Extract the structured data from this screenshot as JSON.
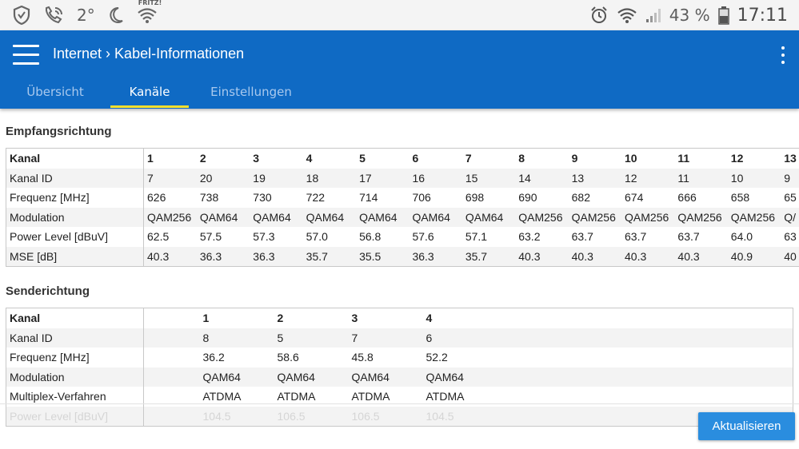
{
  "status_bar": {
    "temperature": "2°",
    "fritz_label": "FRITZ!",
    "battery": "43 %",
    "time": "17:11",
    "icons": [
      "shield-icon",
      "phone-wifi-icon",
      "moon-icon",
      "fritz-wifi-icon",
      "alarm-icon",
      "wifi-icon",
      "signal-icon",
      "battery-icon"
    ]
  },
  "header": {
    "breadcrumb_parent": "Internet",
    "breadcrumb_sep": "›",
    "breadcrumb_current": "Kabel-Informationen",
    "color": "#0f6ac4",
    "accent": "#fde02b"
  },
  "tabs": [
    {
      "label": "Übersicht",
      "active": false
    },
    {
      "label": "Kanäle",
      "active": true
    },
    {
      "label": "Einstellungen",
      "active": false
    }
  ],
  "downstream": {
    "title": "Empfangsrichtung",
    "rows": [
      {
        "label": "Kanal",
        "values": [
          "1",
          "2",
          "3",
          "4",
          "5",
          "6",
          "7",
          "8",
          "9",
          "10",
          "11",
          "12",
          "13"
        ]
      },
      {
        "label": "Kanal ID",
        "values": [
          "7",
          "20",
          "19",
          "18",
          "17",
          "16",
          "15",
          "14",
          "13",
          "12",
          "11",
          "10",
          "9"
        ]
      },
      {
        "label": "Frequenz [MHz]",
        "values": [
          "626",
          "738",
          "730",
          "722",
          "714",
          "706",
          "698",
          "690",
          "682",
          "674",
          "666",
          "658",
          "65"
        ]
      },
      {
        "label": "Modulation",
        "values": [
          "QAM256",
          "QAM64",
          "QAM64",
          "QAM64",
          "QAM64",
          "QAM64",
          "QAM64",
          "QAM256",
          "QAM256",
          "QAM256",
          "QAM256",
          "QAM256",
          "Q/"
        ]
      },
      {
        "label": "Power Level [dBuV]",
        "values": [
          "62.5",
          "57.5",
          "57.3",
          "57.0",
          "56.8",
          "57.6",
          "57.1",
          "63.2",
          "63.7",
          "63.7",
          "63.7",
          "64.0",
          "63"
        ]
      },
      {
        "label": "MSE [dB]",
        "values": [
          "40.3",
          "36.3",
          "36.3",
          "35.7",
          "35.5",
          "36.3",
          "35.7",
          "40.3",
          "40.3",
          "40.3",
          "40.3",
          "40.9",
          "40"
        ]
      }
    ]
  },
  "upstream": {
    "title": "Senderichtung",
    "rows": [
      {
        "label": "Kanal",
        "values": [
          "1",
          "2",
          "3",
          "4"
        ]
      },
      {
        "label": "Kanal ID",
        "values": [
          "8",
          "5",
          "7",
          "6"
        ]
      },
      {
        "label": "Frequenz [MHz]",
        "values": [
          "36.2",
          "58.6",
          "45.8",
          "52.2"
        ]
      },
      {
        "label": "Modulation",
        "values": [
          "QAM64",
          "QAM64",
          "QAM64",
          "QAM64"
        ]
      },
      {
        "label": "Multiplex-Verfahren",
        "values": [
          "ATDMA",
          "ATDMA",
          "ATDMA",
          "ATDMA"
        ]
      },
      {
        "label": "Power Level [dBuV]",
        "values": [
          "104.5",
          "106.5",
          "106.5",
          "104.5"
        ]
      }
    ]
  },
  "refresh_button": {
    "label": "Aktualisieren",
    "color": "#2a8ddf"
  }
}
